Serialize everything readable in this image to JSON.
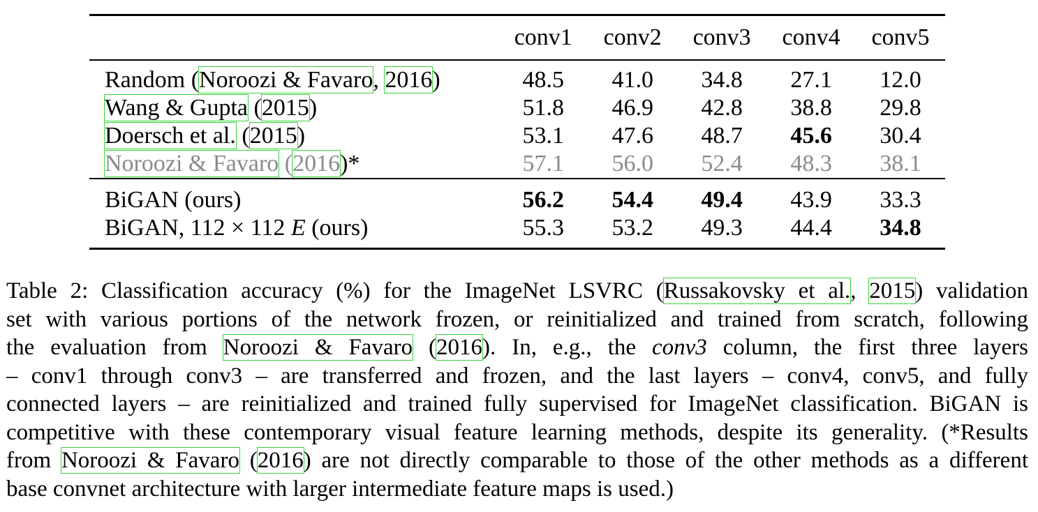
{
  "table": {
    "columns": [
      "conv1",
      "conv2",
      "conv3",
      "conv4",
      "conv5"
    ],
    "group1": [
      {
        "name_prefix": "Random (",
        "cite_author": "Noroozi & Favaro",
        "name_mid": ", ",
        "cite_year": "2016",
        "name_suffix": ")",
        "values": [
          "48.5",
          "41.0",
          "34.8",
          "27.1",
          "12.0"
        ]
      },
      {
        "name_prefix": "",
        "cite_author": "Wang & Gupta",
        "name_mid": " (",
        "cite_year": "2015",
        "name_suffix": ")",
        "values": [
          "51.8",
          "46.9",
          "42.8",
          "38.8",
          "29.8"
        ]
      },
      {
        "name_prefix": "",
        "cite_author": "Doersch et al.",
        "name_mid": " (",
        "cite_year": "2015",
        "name_suffix": ")",
        "values": [
          "53.1",
          "47.6",
          "48.7",
          "45.6",
          "30.4"
        ]
      },
      {
        "name_prefix": "",
        "cite_author": "Noroozi & Favaro",
        "name_mid": " (",
        "cite_year": "2016",
        "name_suffix": ")*",
        "values": [
          "57.1",
          "56.0",
          "52.4",
          "48.3",
          "38.1"
        ]
      }
    ],
    "group2": [
      {
        "name": "BiGAN (ours)",
        "values": [
          "56.2",
          "54.4",
          "49.4",
          "43.9",
          "33.3"
        ]
      },
      {
        "name_a": "BiGAN, 112 × 112 ",
        "name_italic": "E",
        "name_b": " (ours)",
        "values": [
          "55.3",
          "53.2",
          "49.3",
          "44.4",
          "34.8"
        ]
      }
    ]
  },
  "caption": {
    "l1_a": "Table 2: Classification accuracy (%) for the ImageNet LSVRC (",
    "l1_cite_author": "Russakovsky et al.",
    "l1_b": ", ",
    "l1_cite_year": "2015",
    "l1_c": ") validation",
    "l2": "set with various portions of the network frozen, or reinitialized and trained from scratch, following",
    "l3_a": "the evaluation from ",
    "l3_cite_author": "Noroozi & Favaro",
    "l3_b": " (",
    "l3_cite_year": "2016",
    "l3_c": ").  In, e.g., the ",
    "l3_italic": "conv3",
    "l3_d": " column, the first three layers",
    "l4": "– conv1 through conv3 – are transferred and frozen, and the last layers – conv4, conv5, and fully",
    "l5": "connected layers – are reinitialized and trained fully supervised for ImageNet classification. BiGAN is",
    "l6": "competitive with these contemporary visual feature learning methods, despite its generality. (*Results",
    "l7_a": "from ",
    "l7_cite_author": "Noroozi & Favaro",
    "l7_b": " (",
    "l7_cite_year": "2016",
    "l7_c": ") are not directly comparable to those of the other methods as a different",
    "l8": "base convnet architecture with larger intermediate feature maps is used.)"
  }
}
